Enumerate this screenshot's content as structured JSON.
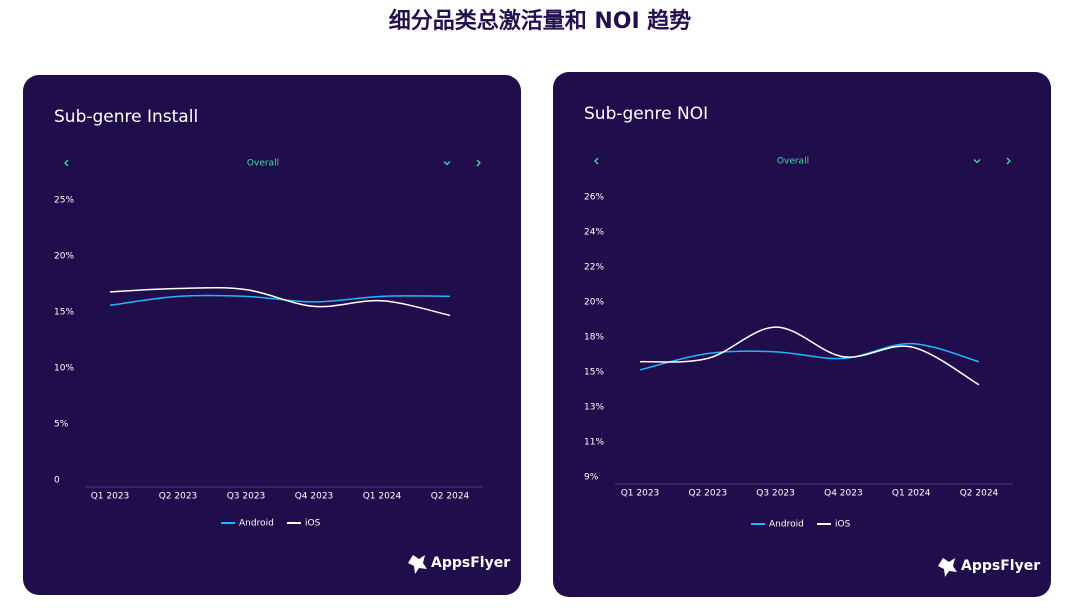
{
  "title": "细分品类总激活量和 NOI 趋势",
  "chart_data": [
    {
      "type": "line",
      "title": "Sub-genre Install",
      "filter": "Overall",
      "brand": "AppsFlyer",
      "categories": [
        "Q1 2023",
        "Q2 2023",
        "Q3 2023",
        "Q4 2023",
        "Q1 2024",
        "Q2 2024"
      ],
      "series": [
        {
          "name": "Android",
          "color": "#1fb6ff",
          "values": [
            15.6,
            16.4,
            16.4,
            15.9,
            16.4,
            16.4
          ]
        },
        {
          "name": "iOS",
          "color": "#ffffff",
          "values": [
            16.8,
            17.1,
            17.0,
            15.5,
            16.0,
            14.7
          ]
        }
      ],
      "ylim": [
        0,
        25
      ],
      "yticks": [
        0,
        {
          "value": 5,
          "label": "5%"
        },
        {
          "value": 10,
          "label": "10%"
        },
        {
          "value": 15,
          "label": "15%"
        },
        {
          "value": 20,
          "label": "20%"
        },
        {
          "value": 25,
          "label": "25%"
        }
      ],
      "grid": false,
      "legend": "bottom"
    },
    {
      "type": "line",
      "title": "Sub-genre NOI",
      "filter": "Overall",
      "brand": "AppsFlyer",
      "categories": [
        "Q1 2023",
        "Q2 2023",
        "Q3 2023",
        "Q4 2023",
        "Q1 2024",
        "Q2 2024"
      ],
      "series": [
        {
          "name": "Android",
          "color": "#1fb6ff",
          "values": [
            15.5,
            16.5,
            16.6,
            16.2,
            17.1,
            16.0
          ]
        },
        {
          "name": "iOS",
          "color": "#ffffff",
          "values": [
            16.0,
            16.2,
            18.1,
            16.3,
            16.9,
            14.6
          ]
        }
      ],
      "ylim": [
        9,
        26
      ],
      "yticks": [
        {
          "value": 9,
          "label": "9%"
        },
        {
          "value": 11.125,
          "label": "11%"
        },
        {
          "value": 13.25,
          "label": "13%"
        },
        {
          "value": 15.375,
          "label": "15%"
        },
        {
          "value": 17.5,
          "label": "18%"
        },
        {
          "value": 19.625,
          "label": "20%"
        },
        {
          "value": 21.75,
          "label": "22%"
        },
        {
          "value": 23.875,
          "label": "24%"
        },
        {
          "value": 26,
          "label": "26%"
        }
      ],
      "grid": false,
      "legend": "bottom"
    }
  ]
}
